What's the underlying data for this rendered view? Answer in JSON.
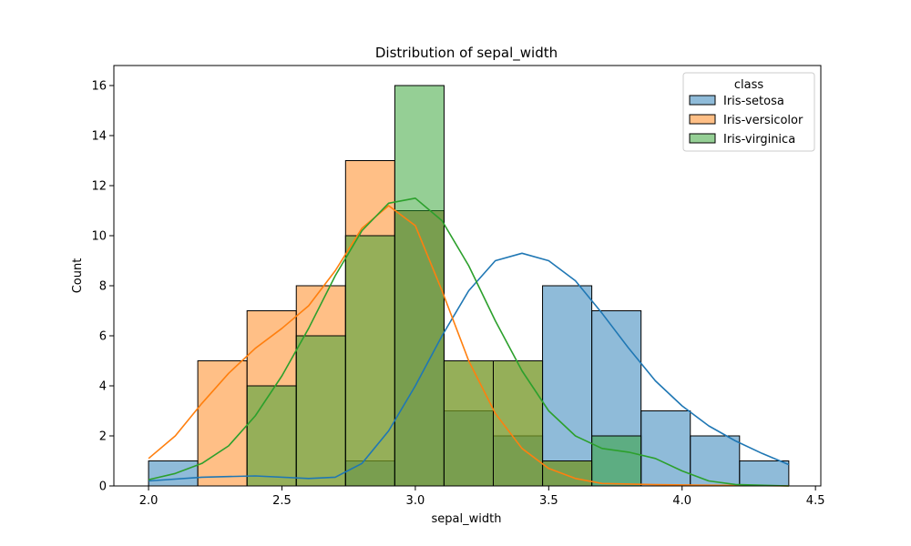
{
  "chart_data": {
    "type": "bar",
    "title": "Distribution of sepal_width",
    "xlabel": "sepal_width",
    "ylabel": "Count",
    "xlim": [
      1.87,
      4.52
    ],
    "ylim": [
      0,
      16.8
    ],
    "xticks": [
      2.0,
      2.5,
      3.0,
      3.5,
      4.0,
      4.5
    ],
    "xtick_labels": [
      "2.0",
      "2.5",
      "3.0",
      "3.5",
      "4.0",
      "4.5"
    ],
    "yticks": [
      0,
      2,
      4,
      6,
      8,
      10,
      12,
      14,
      16
    ],
    "ytick_labels": [
      "0",
      "2",
      "4",
      "6",
      "8",
      "10",
      "12",
      "14",
      "16"
    ],
    "bin_edges": [
      2.0,
      2.1846,
      2.3692,
      2.5538,
      2.7385,
      2.9231,
      3.1077,
      3.2923,
      3.4769,
      3.6615,
      3.8462,
      4.0308,
      4.2154,
      4.4
    ],
    "legend_title": "class",
    "legend_position": "upper right",
    "series": [
      {
        "name": "Iris-setosa",
        "color": "#1f77b4",
        "values": [
          1,
          0,
          0,
          0,
          1,
          11,
          3,
          2,
          8,
          7,
          3,
          2,
          1
        ],
        "kde": [
          [
            2.0,
            0.2
          ],
          [
            2.2,
            0.35
          ],
          [
            2.4,
            0.4
          ],
          [
            2.6,
            0.3
          ],
          [
            2.7,
            0.35
          ],
          [
            2.8,
            0.9
          ],
          [
            2.9,
            2.2
          ],
          [
            3.0,
            4.0
          ],
          [
            3.1,
            6.0
          ],
          [
            3.2,
            7.8
          ],
          [
            3.3,
            9.0
          ],
          [
            3.4,
            9.3
          ],
          [
            3.5,
            9.0
          ],
          [
            3.6,
            8.2
          ],
          [
            3.7,
            6.9
          ],
          [
            3.8,
            5.5
          ],
          [
            3.9,
            4.2
          ],
          [
            4.0,
            3.2
          ],
          [
            4.1,
            2.4
          ],
          [
            4.2,
            1.8
          ],
          [
            4.3,
            1.3
          ],
          [
            4.4,
            0.85
          ]
        ]
      },
      {
        "name": "Iris-versicolor",
        "color": "#ff7f0e",
        "values": [
          0,
          5,
          7,
          8,
          13,
          11,
          5,
          5,
          1,
          0,
          0,
          0,
          0
        ],
        "kde": [
          [
            2.0,
            1.1
          ],
          [
            2.1,
            2.0
          ],
          [
            2.2,
            3.3
          ],
          [
            2.3,
            4.5
          ],
          [
            2.4,
            5.5
          ],
          [
            2.5,
            6.3
          ],
          [
            2.6,
            7.2
          ],
          [
            2.7,
            8.6
          ],
          [
            2.8,
            10.3
          ],
          [
            2.9,
            11.2
          ],
          [
            3.0,
            10.4
          ],
          [
            3.1,
            7.8
          ],
          [
            3.2,
            5.0
          ],
          [
            3.3,
            2.9
          ],
          [
            3.4,
            1.5
          ],
          [
            3.5,
            0.7
          ],
          [
            3.6,
            0.3
          ],
          [
            3.7,
            0.1
          ],
          [
            3.9,
            0.05
          ],
          [
            4.4,
            0.0
          ]
        ]
      },
      {
        "name": "Iris-virginica",
        "color": "#2ca02c",
        "values": [
          0,
          0,
          4,
          6,
          10,
          16,
          5,
          5,
          1,
          2,
          0,
          0,
          0
        ],
        "kde": [
          [
            2.0,
            0.25
          ],
          [
            2.1,
            0.5
          ],
          [
            2.2,
            0.9
          ],
          [
            2.3,
            1.6
          ],
          [
            2.4,
            2.8
          ],
          [
            2.5,
            4.4
          ],
          [
            2.6,
            6.3
          ],
          [
            2.7,
            8.4
          ],
          [
            2.8,
            10.2
          ],
          [
            2.9,
            11.3
          ],
          [
            3.0,
            11.5
          ],
          [
            3.1,
            10.6
          ],
          [
            3.2,
            8.8
          ],
          [
            3.3,
            6.6
          ],
          [
            3.4,
            4.6
          ],
          [
            3.5,
            3.0
          ],
          [
            3.6,
            2.0
          ],
          [
            3.7,
            1.5
          ],
          [
            3.8,
            1.35
          ],
          [
            3.9,
            1.1
          ],
          [
            4.0,
            0.6
          ],
          [
            4.1,
            0.2
          ],
          [
            4.2,
            0.06
          ],
          [
            4.4,
            0.0
          ]
        ]
      }
    ]
  }
}
